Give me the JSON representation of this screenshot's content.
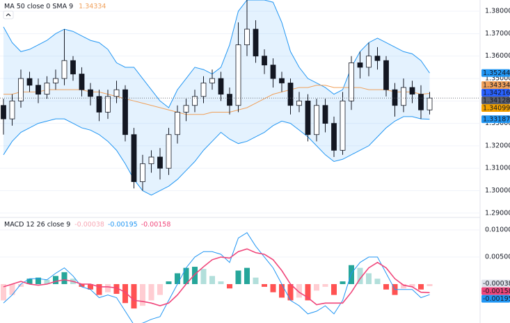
{
  "chart_data": [
    {
      "type": "candlestick",
      "label": "MA 50 close 0 SMA 9",
      "open": [
        1.338,
        1.332,
        1.34,
        1.35,
        1.347,
        1.343,
        1.348,
        1.35,
        1.358,
        1.352,
        1.345,
        1.342,
        1.335,
        1.342,
        1.345,
        1.325,
        1.304,
        1.312,
        1.315,
        1.31,
        1.325,
        1.335,
        1.338,
        1.342,
        1.348,
        1.35,
        1.343,
        1.338,
        1.365,
        1.372,
        1.36,
        1.356,
        1.35,
        1.348,
        1.338,
        1.34,
        1.325,
        1.338,
        1.33,
        1.318,
        1.34,
        1.357,
        1.355,
        1.36,
        1.358,
        1.345,
        1.338,
        1.346,
        1.343,
        1.336
      ],
      "high": [
        1.341,
        1.343,
        1.354,
        1.353,
        1.35,
        1.351,
        1.354,
        1.372,
        1.36,
        1.355,
        1.348,
        1.345,
        1.345,
        1.349,
        1.347,
        1.328,
        1.316,
        1.318,
        1.319,
        1.328,
        1.338,
        1.341,
        1.345,
        1.351,
        1.354,
        1.353,
        1.346,
        1.375,
        1.385,
        1.376,
        1.363,
        1.359,
        1.353,
        1.35,
        1.344,
        1.343,
        1.341,
        1.341,
        1.333,
        1.344,
        1.36,
        1.362,
        1.366,
        1.364,
        1.36,
        1.348,
        1.35,
        1.349,
        1.347,
        1.344
      ],
      "low": [
        1.325,
        1.329,
        1.337,
        1.344,
        1.339,
        1.341,
        1.345,
        1.347,
        1.349,
        1.342,
        1.338,
        1.331,
        1.332,
        1.339,
        1.322,
        1.301,
        1.3,
        1.308,
        1.305,
        1.307,
        1.321,
        1.331,
        1.335,
        1.339,
        1.345,
        1.34,
        1.334,
        1.335,
        1.36,
        1.357,
        1.352,
        1.346,
        1.344,
        1.334,
        1.335,
        1.322,
        1.322,
        1.326,
        1.315,
        1.316,
        1.336,
        1.35,
        1.351,
        1.354,
        1.342,
        1.333,
        1.335,
        1.339,
        1.332,
        1.334
      ],
      "close": [
        1.332,
        1.34,
        1.35,
        1.347,
        1.343,
        1.348,
        1.35,
        1.358,
        1.352,
        1.345,
        1.342,
        1.335,
        1.342,
        1.345,
        1.325,
        1.304,
        1.312,
        1.315,
        1.31,
        1.325,
        1.335,
        1.338,
        1.342,
        1.348,
        1.35,
        1.343,
        1.338,
        1.365,
        1.372,
        1.36,
        1.356,
        1.35,
        1.348,
        1.338,
        1.34,
        1.325,
        1.338,
        1.33,
        1.318,
        1.34,
        1.357,
        1.355,
        1.36,
        1.358,
        1.345,
        1.338,
        1.346,
        1.343,
        1.336,
        1.34128
      ],
      "up_color": "#ffffff",
      "down_color": "#131722",
      "last_color": "#5d606b",
      "bands": {
        "color": "#2196f3",
        "fill": "rgba(33,150,243,0.12)",
        "upper": [
          1.373,
          1.366,
          1.362,
          1.363,
          1.365,
          1.367,
          1.37,
          1.372,
          1.371,
          1.369,
          1.367,
          1.366,
          1.363,
          1.357,
          1.355,
          1.355,
          1.35,
          1.345,
          1.34,
          1.337,
          1.345,
          1.35,
          1.355,
          1.354,
          1.352,
          1.355,
          1.365,
          1.38,
          1.385,
          1.385,
          1.385,
          1.384,
          1.375,
          1.362,
          1.355,
          1.35,
          1.348,
          1.346,
          1.343,
          1.345,
          1.355,
          1.362,
          1.366,
          1.368,
          1.366,
          1.364,
          1.362,
          1.361,
          1.358,
          1.35244
        ],
        "lower": [
          1.316,
          1.322,
          1.326,
          1.328,
          1.33,
          1.331,
          1.332,
          1.332,
          1.33,
          1.328,
          1.327,
          1.325,
          1.322,
          1.318,
          1.312,
          1.305,
          1.3,
          1.298,
          1.3,
          1.302,
          1.305,
          1.309,
          1.313,
          1.318,
          1.322,
          1.326,
          1.323,
          1.321,
          1.322,
          1.324,
          1.326,
          1.329,
          1.331,
          1.33,
          1.327,
          1.324,
          1.32,
          1.316,
          1.313,
          1.314,
          1.316,
          1.318,
          1.32,
          1.324,
          1.328,
          1.331,
          1.333,
          1.333,
          1.332,
          1.33187
        ]
      },
      "ma": {
        "color": "#f0a05a",
        "values": [
          1.343,
          1.343,
          1.344,
          1.344,
          1.344,
          1.345,
          1.345,
          1.345,
          1.345,
          1.345,
          1.344,
          1.344,
          1.343,
          1.342,
          1.341,
          1.34,
          1.339,
          1.338,
          1.337,
          1.336,
          1.335,
          1.334,
          1.334,
          1.334,
          1.335,
          1.335,
          1.335,
          1.336,
          1.337,
          1.339,
          1.341,
          1.343,
          1.344,
          1.345,
          1.346,
          1.346,
          1.347,
          1.347,
          1.346,
          1.346,
          1.346,
          1.346,
          1.345,
          1.345,
          1.345,
          1.344,
          1.344,
          1.344,
          1.343,
          1.34334
        ]
      },
      "price_tags": [
        {
          "value": 1.34216,
          "color": "#2962ff"
        },
        {
          "value": 1.34099,
          "color": "#f2a100"
        }
      ],
      "ylim": [
        1.289,
        1.385
      ],
      "yticks": [
        {
          "value": 1.38,
          "label": "1.38000"
        },
        {
          "value": 1.37,
          "label": "1.37000"
        },
        {
          "value": 1.36,
          "label": "1.36000"
        },
        {
          "value": 1.35,
          "label": "1.35000"
        },
        {
          "value": 1.34,
          "label": "1.34000"
        },
        {
          "value": 1.33,
          "label": "1.33000"
        },
        {
          "value": 1.32,
          "label": "1.32000"
        },
        {
          "value": 1.31,
          "label": "1.31000"
        },
        {
          "value": 1.3,
          "label": "1.30000"
        },
        {
          "value": 1.29,
          "label": "1.29000"
        }
      ],
      "grid": true
    },
    {
      "type": "macd",
      "label": "MACD 12 26 close 9",
      "histogram": {
        "pos_rising": "#26a69a",
        "pos_falling": "#b2dfdb",
        "neg_falling": "#ff5252",
        "neg_rising": "#ffcdd2",
        "header_color": "#f7a7b4",
        "values": [
          -0.003,
          -0.002,
          -0.0005,
          0.001,
          0.0012,
          0.0008,
          0.0015,
          0.0022,
          0.001,
          -0.0005,
          -0.001,
          -0.002,
          -0.0015,
          -0.0018,
          -0.0035,
          -0.0045,
          -0.004,
          -0.003,
          -0.002,
          0.0005,
          0.002,
          0.003,
          0.0032,
          0.0028,
          0.0015,
          0.0005,
          -0.0008,
          0.0025,
          0.003,
          0.0012,
          -0.0005,
          -0.0015,
          -0.0025,
          -0.003,
          -0.0025,
          -0.003,
          -0.0012,
          -0.0005,
          -0.002,
          0.0005,
          0.0035,
          0.003,
          0.002,
          0.001,
          -0.001,
          -0.002,
          -0.0008,
          -0.0005,
          -0.001,
          -0.00038
        ]
      },
      "macd": {
        "color": "#2196f3",
        "values": [
          -0.0035,
          -0.002,
          0.0,
          0.001,
          0.001,
          0.0008,
          0.002,
          0.003,
          0.0015,
          -0.0005,
          -0.001,
          -0.0025,
          -0.002,
          -0.0025,
          -0.005,
          -0.0075,
          -0.0072,
          -0.0065,
          -0.006,
          -0.003,
          0.0,
          0.003,
          0.005,
          0.006,
          0.006,
          0.0055,
          0.004,
          0.0085,
          0.0095,
          0.007,
          0.005,
          0.003,
          0.0,
          -0.003,
          -0.004,
          -0.0055,
          -0.005,
          -0.004,
          -0.0055,
          -0.003,
          0.002,
          0.004,
          0.005,
          0.005,
          0.002,
          -0.001,
          -0.001,
          -0.001,
          -0.0025,
          -0.00195
        ]
      },
      "signal": {
        "color": "#f0457a",
        "values": [
          -0.0005,
          0.0,
          0.0005,
          0.0,
          -0.0002,
          0.0,
          0.0005,
          0.0008,
          0.0005,
          0.0,
          0.0,
          -0.0005,
          -0.0005,
          -0.0007,
          -0.0015,
          -0.003,
          -0.0032,
          -0.0035,
          -0.004,
          -0.0035,
          -0.002,
          0.0,
          0.0018,
          0.0032,
          0.0045,
          0.005,
          0.0048,
          0.006,
          0.0065,
          0.0058,
          0.0055,
          0.0045,
          0.0025,
          0.0,
          -0.0015,
          -0.0025,
          -0.0038,
          -0.0035,
          -0.0035,
          -0.0035,
          -0.0015,
          0.001,
          0.003,
          0.004,
          0.003,
          0.001,
          -0.0002,
          -0.0005,
          -0.0015,
          -0.00158
        ]
      },
      "ylim": [
        -0.00718,
        0.01167
      ],
      "yticks": [
        {
          "value": 0.01,
          "label": "0.01000"
        },
        {
          "value": 0.005,
          "label": "0.00500"
        }
      ],
      "grid": true
    }
  ]
}
